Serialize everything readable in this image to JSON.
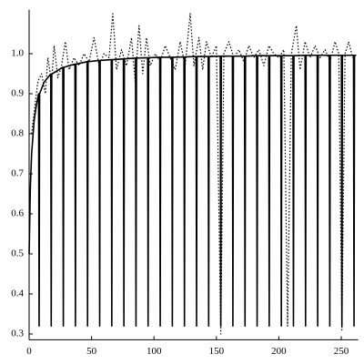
{
  "chart_data": {
    "type": "line",
    "xlim": [
      0,
      262
    ],
    "ylim": [
      0.29,
      1.11
    ],
    "xticks": [
      0,
      50,
      100,
      150,
      200,
      250
    ],
    "yticks": [
      0.3,
      0.4,
      0.5,
      0.6,
      0.7,
      0.8,
      0.9,
      {
        "value": 1,
        "label": "1.0"
      }
    ],
    "series": [
      {
        "color": "#000000",
        "dotted": false,
        "x": [
          0,
          1,
          2,
          4,
          6,
          7.6,
          8,
          8.4,
          12,
          17.3,
          17.7,
          18.1,
          27,
          27.4,
          27.8,
          36.7,
          37.1,
          37.5,
          46.4,
          46.8,
          47.2,
          56.1,
          56.5,
          56.9,
          65.8,
          66.2,
          66.6,
          75.5,
          75.9,
          76.3,
          85.2,
          85.6,
          86,
          94.9,
          95.3,
          95.7,
          104.6,
          105,
          105.4,
          114.3,
          114.7,
          115.1,
          124,
          124.4,
          124.8,
          133.7,
          134.1,
          134.5,
          143.4,
          143.8,
          144.2,
          153.1,
          153.5,
          153.9,
          162.8,
          163.2,
          163.6,
          172.5,
          172.9,
          173.3,
          182.2,
          182.6,
          183,
          191.9,
          192.3,
          192.7,
          201.6,
          202,
          202.4,
          211.3,
          211.7,
          212.1,
          221,
          221.4,
          221.8,
          230.7,
          231.1,
          231.5,
          240.4,
          240.8,
          241.2,
          250.1,
          250.5,
          250.9,
          259.8,
          260.2,
          260.6,
          262
        ],
        "values": [
          0.5,
          0.667,
          0.75,
          0.833,
          0.875,
          0.9,
          0.32,
          0.9,
          0.929,
          0.949,
          0.32,
          0.949,
          0.966,
          0.32,
          0.966,
          0.974,
          0.32,
          0.974,
          0.98,
          0.32,
          0.98,
          0.983,
          0.32,
          0.983,
          0.985,
          0.32,
          0.985,
          0.987,
          0.32,
          0.987,
          0.989,
          0.32,
          0.989,
          0.99,
          0.32,
          0.99,
          0.991,
          0.32,
          0.991,
          0.991,
          0.32,
          0.991,
          0.992,
          0.32,
          0.992,
          0.993,
          0.32,
          0.993,
          0.993,
          0.32,
          0.993,
          0.994,
          0.32,
          0.994,
          0.994,
          0.32,
          0.994,
          0.994,
          0.32,
          0.994,
          0.995,
          0.32,
          0.995,
          0.995,
          0.32,
          0.995,
          0.995,
          0.32,
          0.995,
          0.995,
          0.32,
          0.995,
          0.996,
          0.32,
          0.996,
          0.996,
          0.32,
          0.996,
          0.996,
          0.32,
          0.996,
          0.996,
          0.32,
          0.996,
          0.996,
          0.32,
          0.996,
          0.996
        ]
      },
      {
        "color": "#000000",
        "dotted": true,
        "x": [
          2,
          5,
          7,
          10,
          13,
          15,
          18,
          20,
          23,
          26,
          29,
          32,
          36,
          40,
          44,
          48,
          52,
          56,
          60,
          64,
          67,
          70,
          74,
          78,
          82,
          85,
          88,
          91,
          94,
          97,
          101,
          105,
          109,
          113,
          117,
          121,
          125,
          129,
          132,
          136,
          139,
          142,
          146,
          150,
          153.5,
          156,
          160,
          164,
          168,
          172,
          176,
          180,
          184,
          188,
          192,
          196,
          200,
          204,
          207,
          210,
          214,
          217,
          221,
          225,
          229,
          233,
          237,
          241,
          245,
          248,
          250.5,
          253,
          256,
          259
        ],
        "values": [
          0.8,
          0.88,
          0.93,
          0.95,
          0.9,
          0.99,
          0.93,
          1.02,
          0.94,
          0.97,
          1.03,
          0.96,
          0.99,
          0.97,
          1.0,
          0.98,
          1.04,
          0.97,
          1.0,
          0.99,
          1.1,
          0.96,
          1.01,
          0.97,
          1.04,
          0.93,
          1.07,
          0.95,
          1.04,
          0.97,
          1.0,
          0.98,
          1.02,
          0.99,
          0.96,
          1.03,
          0.97,
          1.1,
          0.97,
          1.04,
          0.96,
          1.03,
          0.99,
          1.02,
          0.3,
          1.0,
          1.03,
          0.99,
          1.01,
          0.98,
          1.02,
          0.99,
          1.01,
          0.97,
          1.02,
          1.0,
          0.99,
          1.01,
          0.32,
          1.0,
          1.07,
          0.96,
          1.03,
          0.99,
          1.02,
          0.99,
          1.01,
          0.98,
          1.03,
          1.0,
          0.31,
          1.0,
          1.03,
          0.99
        ]
      }
    ]
  }
}
